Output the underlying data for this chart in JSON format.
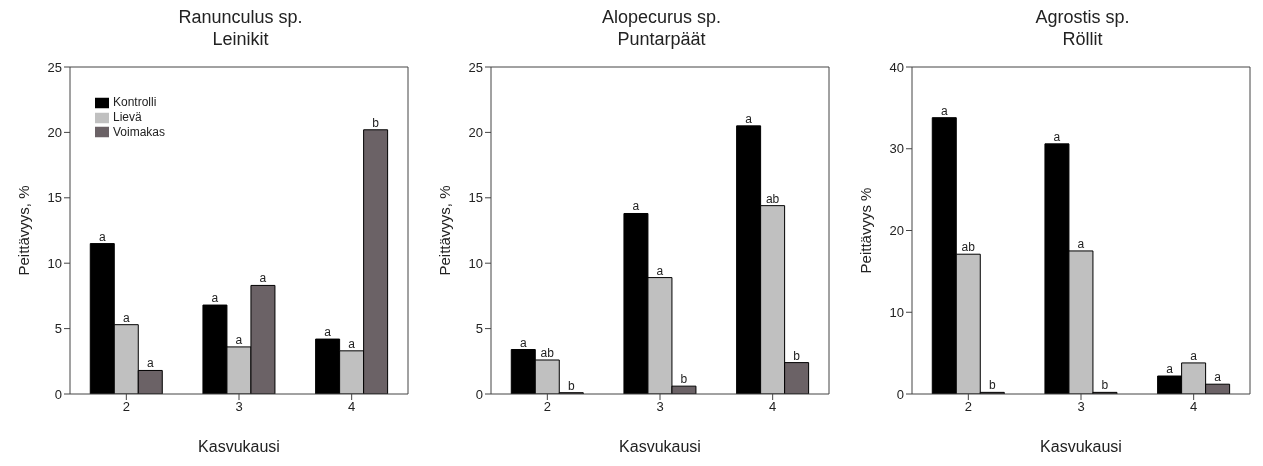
{
  "chart_data": [
    {
      "type": "bar",
      "title": "Ranunculus sp.",
      "subtitle": "Leinikit",
      "xlabel": "Kasvukausi",
      "ylabel": "Peittävyys, %",
      "categories": [
        "2",
        "3",
        "4"
      ],
      "series": [
        {
          "name": "Kontrolli",
          "color": "#000000",
          "values": [
            11.5,
            6.8,
            4.2
          ],
          "value_labels": [
            "a",
            "a",
            "a"
          ]
        },
        {
          "name": "Lievä",
          "color": "#c0c0c0",
          "values": [
            5.3,
            3.6,
            3.3
          ],
          "value_labels": [
            "a",
            "a",
            "a"
          ]
        },
        {
          "name": "Voimakas",
          "color": "#6b6266",
          "values": [
            1.8,
            8.3,
            20.2
          ],
          "value_labels": [
            "a",
            "a",
            "b"
          ]
        }
      ],
      "ylim": [
        0,
        25
      ],
      "yticks": [
        0,
        5,
        10,
        15,
        20,
        25
      ],
      "grid": false,
      "legend": "top left"
    },
    {
      "type": "bar",
      "title": "Alopecurus sp.",
      "subtitle": "Puntarpäät",
      "xlabel": "Kasvukausi",
      "ylabel": "Peittävyys, %",
      "categories": [
        "2",
        "3",
        "4"
      ],
      "series": [
        {
          "color": "#000000",
          "values": [
            3.4,
            13.8,
            20.5
          ],
          "value_labels": [
            "a",
            "a",
            "a"
          ]
        },
        {
          "color": "#c0c0c0",
          "values": [
            2.6,
            8.9,
            14.4
          ],
          "value_labels": [
            "ab",
            "a",
            "ab"
          ]
        },
        {
          "color": "#6b6266",
          "values": [
            0.1,
            0.6,
            2.4
          ],
          "value_labels": [
            "b",
            "b",
            "b"
          ]
        }
      ],
      "ylim": [
        0,
        25
      ],
      "yticks": [
        0,
        5,
        10,
        15,
        20,
        25
      ],
      "grid": false,
      "legend": false
    },
    {
      "type": "bar",
      "title": "Agrostis sp.",
      "subtitle": "Röllit",
      "xlabel": "Kasvukausi",
      "ylabel": "Peittävyys %",
      "categories": [
        "2",
        "3",
        "4"
      ],
      "series": [
        {
          "color": "#000000",
          "values": [
            33.8,
            30.6,
            2.2
          ],
          "value_labels": [
            "a",
            "a",
            "a"
          ]
        },
        {
          "color": "#c0c0c0",
          "values": [
            17.1,
            17.5,
            3.8
          ],
          "value_labels": [
            "ab",
            "a",
            "a"
          ]
        },
        {
          "color": "#6b6266",
          "values": [
            0.2,
            0.2,
            1.2
          ],
          "value_labels": [
            "b",
            "b",
            "a"
          ]
        }
      ],
      "ylim": [
        0,
        40
      ],
      "yticks": [
        0,
        10,
        20,
        30,
        40
      ],
      "grid": false,
      "legend": false
    }
  ]
}
